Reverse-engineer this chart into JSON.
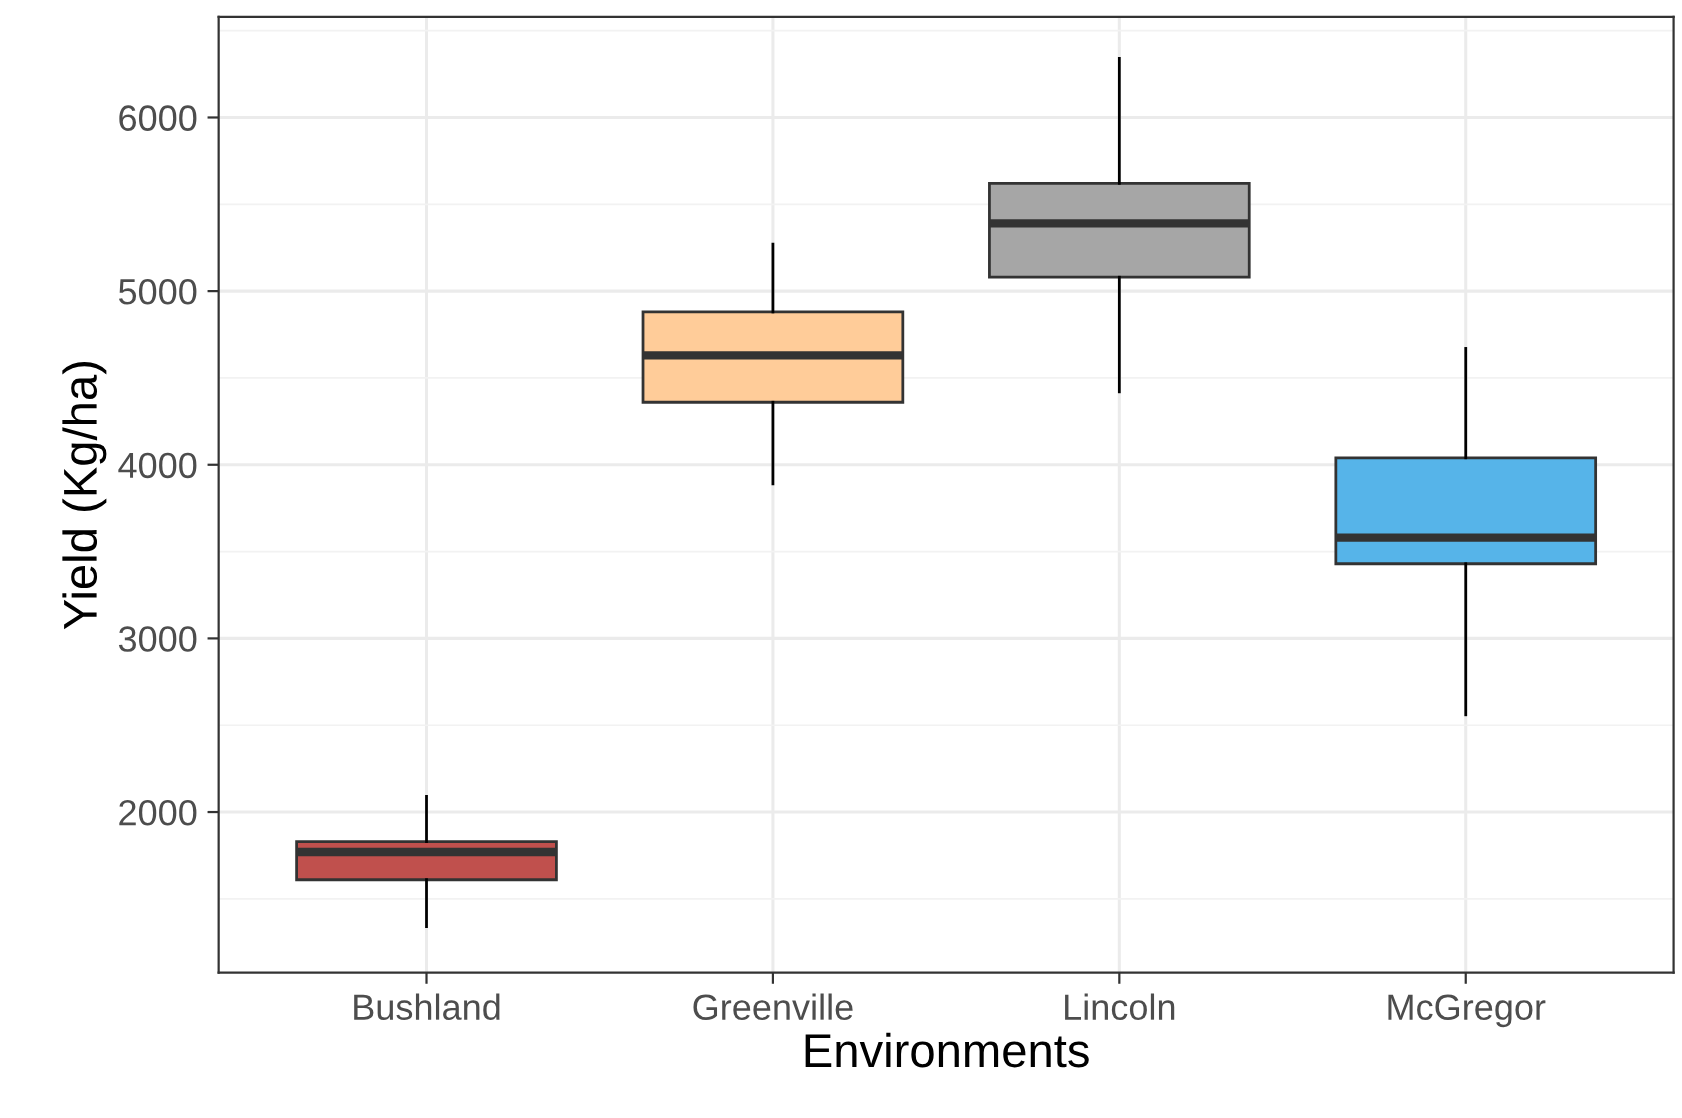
{
  "chart_data": {
    "type": "box",
    "xlabel": "Environments",
    "ylabel": "Yield (Kg/ha)",
    "categories": [
      "Bushland",
      "Greenville",
      "Lincoln",
      "McGregor"
    ],
    "colors": [
      "#c0504d",
      "#ffcc99",
      "#a6a6a6",
      "#56b4e9"
    ],
    "boxes": [
      {
        "low": 1340,
        "q1": 1610,
        "median": 1770,
        "q3": 1830,
        "high": 2090
      },
      {
        "low": 3890,
        "q1": 4360,
        "median": 4630,
        "q3": 4880,
        "high": 5270
      },
      {
        "low": 4420,
        "q1": 5080,
        "median": 5390,
        "q3": 5620,
        "high": 6340
      },
      {
        "low": 2560,
        "q1": 3430,
        "median": 3580,
        "q3": 4040,
        "high": 4670
      }
    ],
    "ylim": [
      1075,
      6580
    ],
    "yticks": [
      2000,
      3000,
      4000,
      5000,
      6000
    ],
    "grid": true
  }
}
